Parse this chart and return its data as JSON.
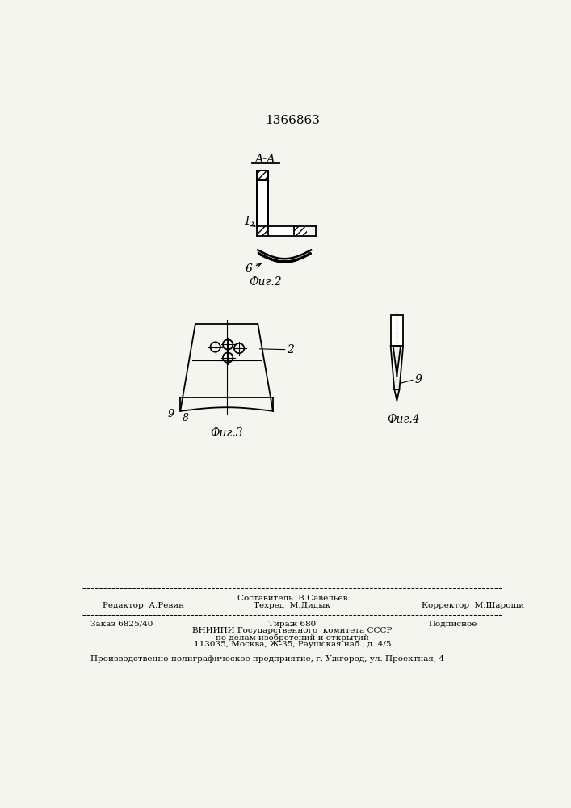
{
  "patent_number": "1366863",
  "fig2_label": "А-А",
  "fig2_caption": "Фиг.2",
  "fig3_caption": "Фиг.3",
  "fig4_caption": "Фиг.4",
  "label_1": "1",
  "label_6": "6",
  "label_2": "2",
  "label_8": "8",
  "label_9_fig3": "9",
  "label_9_fig4": "9",
  "line_color": "#000000",
  "bg_color": "#f5f5f0",
  "footer_editor": "Редактор  А.Ревин",
  "footer_compiler": "Составитель  В.Савельев",
  "footer_techred": "Техред  М.Дидык",
  "footer_corrector": "Корректор  М.Шароши",
  "footer_order": "Заказ 6825/40",
  "footer_tirazh": "Тираж 680",
  "footer_podpisnoe": "Подписное",
  "footer_vnipi1": "ВНИИПИ Государственного  комитета СССР",
  "footer_vnipi2": "по делам изобретений и открытий",
  "footer_vnipi3": "113035, Москва, Ж-35, Раушская наб., д. 4/5",
  "footer_proizvod": "Производственно-полиграфическое предприятие, г. Ужгород, ул. Проектная, 4"
}
